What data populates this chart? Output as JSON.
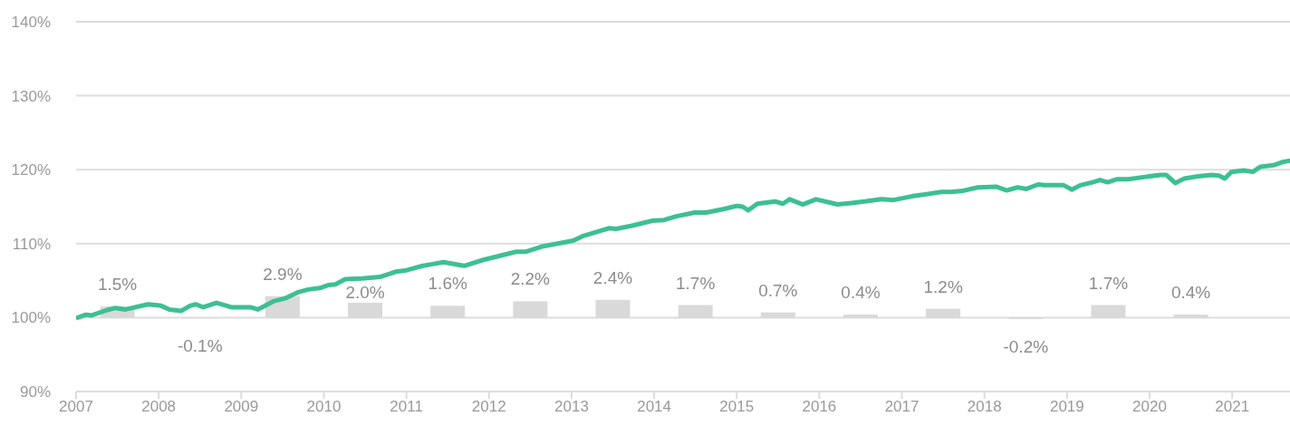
{
  "chart_data": {
    "type": "line",
    "xlim": [
      2007,
      2021.7
    ],
    "xticks": [
      2007,
      2008,
      2009,
      2010,
      2011,
      2012,
      2013,
      2014,
      2015,
      2016,
      2017,
      2018,
      2019,
      2020,
      2021
    ],
    "ylim": [
      90,
      140
    ],
    "yticks": [
      {
        "value": 90,
        "label": "90%"
      },
      {
        "value": 100,
        "label": "100%"
      },
      {
        "value": 110,
        "label": "110%"
      },
      {
        "value": 120,
        "label": "120%"
      },
      {
        "value": 130,
        "label": "130%"
      },
      {
        "value": 140,
        "label": "140%"
      }
    ],
    "grid": "y",
    "legend": false,
    "marker": "none",
    "line_style": "solid",
    "series": [
      {
        "type": "bar",
        "color": "#d9d9d9",
        "x": [
          2007.5,
          2008.5,
          2009.5,
          2010.5,
          2011.5,
          2012.5,
          2013.5,
          2014.5,
          2015.5,
          2016.5,
          2017.5,
          2018.5,
          2019.5,
          2020.5
        ],
        "base": [
          100,
          100,
          100,
          100,
          100,
          100,
          100,
          100,
          100,
          100,
          100,
          100,
          100,
          100
        ],
        "values": [
          1.5,
          -0.1,
          2.9,
          2.0,
          1.6,
          2.2,
          2.4,
          1.7,
          0.7,
          0.4,
          1.2,
          -0.2,
          1.7,
          0.4
        ],
        "value_labels": [
          "1.5%",
          "-0.1%",
          "2.9%",
          "2.0%",
          "1.6%",
          "2.2%",
          "2.4%",
          "1.7%",
          "0.7%",
          "0.4%",
          "1.2%",
          "-0.2%",
          "1.7%",
          "0.4%"
        ]
      },
      {
        "color": "#3dbf94",
        "x": [
          2007.02,
          2007.12,
          2007.19,
          2007.37,
          2007.47,
          2007.6,
          2007.87,
          2008.03,
          2008.13,
          2008.27,
          2008.38,
          2008.45,
          2008.54,
          2008.7,
          2008.88,
          2009.11,
          2009.2,
          2009.39,
          2009.53,
          2009.68,
          2009.81,
          2009.95,
          2010.06,
          2010.14,
          2010.26,
          2010.46,
          2010.68,
          2010.87,
          2011.0,
          2011.2,
          2011.3,
          2011.45,
          2011.7,
          2011.93,
          2012.33,
          2012.44,
          2012.64,
          2013.02,
          2013.13,
          2013.46,
          2013.54,
          2013.72,
          2013.98,
          2014.12,
          2014.27,
          2014.49,
          2014.63,
          2014.85,
          2015.0,
          2015.07,
          2015.14,
          2015.25,
          2015.47,
          2015.56,
          2015.64,
          2015.8,
          2015.96,
          2016.22,
          2016.39,
          2016.55,
          2016.75,
          2016.9,
          2017.12,
          2017.48,
          2017.59,
          2017.72,
          2017.92,
          2018.14,
          2018.27,
          2018.4,
          2018.51,
          2018.65,
          2018.72,
          2018.96,
          2019.06,
          2019.16,
          2019.31,
          2019.4,
          2019.49,
          2019.6,
          2019.74,
          2019.93,
          2020.13,
          2020.2,
          2020.31,
          2020.42,
          2020.59,
          2020.75,
          2020.84,
          2020.91,
          2020.99,
          2021.14,
          2021.25,
          2021.34,
          2021.5,
          2021.6,
          2021.69
        ],
        "values": [
          100.0,
          100.4,
          100.3,
          101.0,
          101.3,
          101.1,
          101.8,
          101.6,
          101.1,
          100.9,
          101.6,
          101.8,
          101.4,
          102.0,
          101.4,
          101.4,
          101.1,
          102.2,
          102.6,
          103.4,
          103.8,
          104.0,
          104.4,
          104.5,
          105.2,
          105.3,
          105.5,
          106.2,
          106.4,
          107.0,
          107.2,
          107.5,
          107.0,
          107.8,
          108.9,
          108.9,
          109.6,
          110.4,
          111.0,
          112.1,
          112.0,
          112.4,
          113.1,
          113.2,
          113.7,
          114.2,
          114.2,
          114.7,
          115.1,
          115.0,
          114.5,
          115.4,
          115.7,
          115.4,
          116.0,
          115.3,
          116.0,
          115.3,
          115.5,
          115.7,
          116.0,
          115.9,
          116.4,
          117.0,
          117.0,
          117.1,
          117.6,
          117.7,
          117.2,
          117.6,
          117.4,
          118.0,
          117.9,
          117.9,
          117.3,
          117.9,
          118.3,
          118.6,
          118.3,
          118.7,
          118.7,
          119.0,
          119.3,
          119.3,
          118.2,
          118.8,
          119.1,
          119.3,
          119.2,
          118.8,
          119.7,
          119.9,
          119.7,
          120.4,
          120.6,
          121.0,
          121.2
        ]
      }
    ]
  }
}
